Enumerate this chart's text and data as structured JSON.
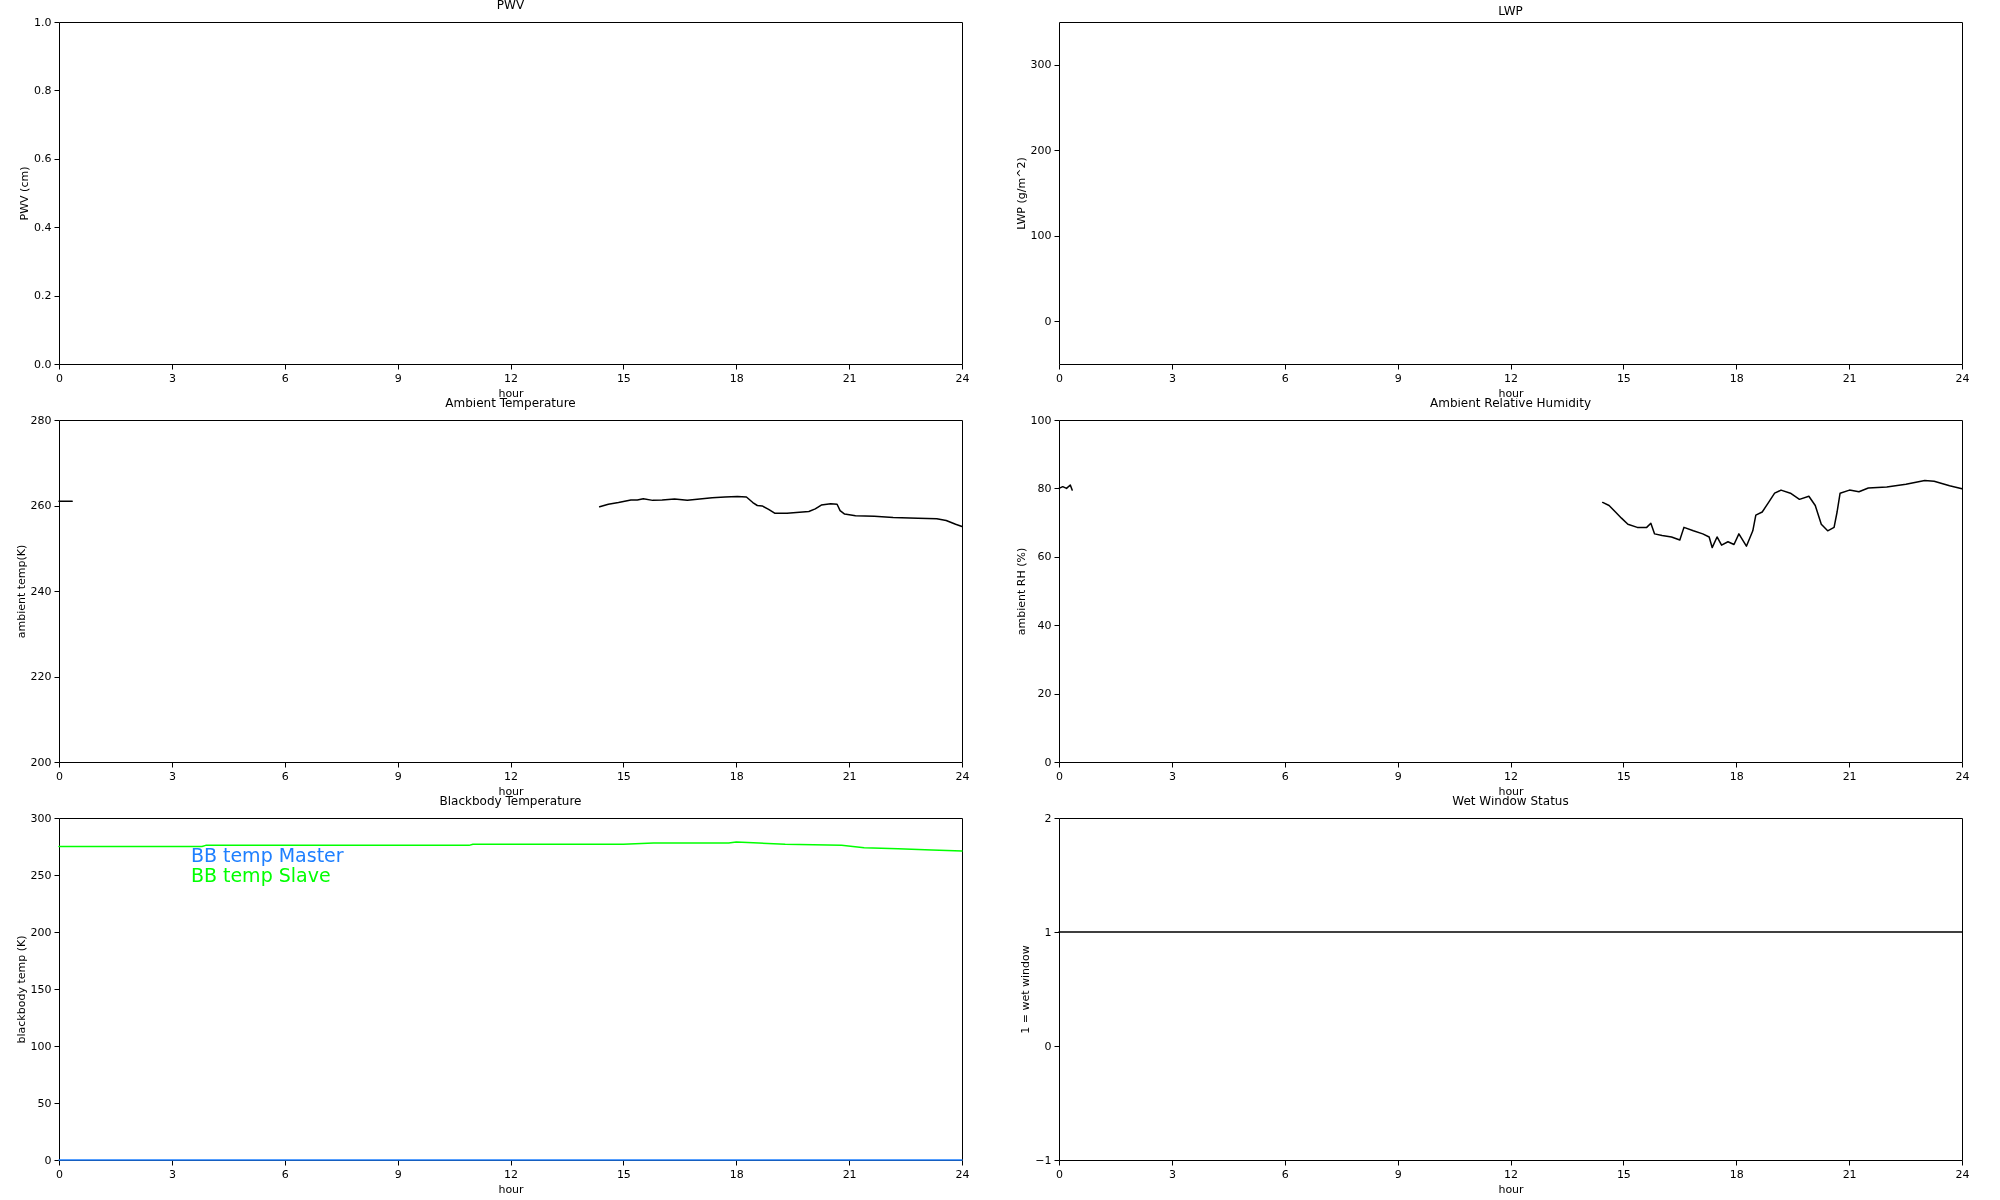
{
  "chart_data": [
    {
      "type": "line",
      "title": "PWV",
      "xlabel": "hour",
      "ylabel": "PWV (cm)",
      "xlim": [
        0,
        24
      ],
      "xticks": [
        0,
        3,
        6,
        9,
        12,
        15,
        18,
        21,
        24
      ],
      "ylim": [
        0,
        1
      ],
      "yticks": [
        {
          "value": 0,
          "label": "0.0"
        },
        0.2,
        0.4,
        0.6,
        0.8,
        {
          "value": 1,
          "label": "1.0"
        }
      ]
    },
    {
      "type": "line",
      "title": "LWP",
      "xlabel": "hour",
      "ylabel": "LWP (g/m^2)",
      "xlim": [
        0,
        24
      ],
      "xticks": [
        0,
        3,
        6,
        9,
        12,
        15,
        18,
        21,
        24
      ],
      "ylim": [
        -50,
        350
      ],
      "yticks": [
        0,
        100,
        200,
        300
      ]
    },
    {
      "type": "line",
      "title": "Ambient Temperature",
      "xlabel": "hour",
      "ylabel": "ambient temp(K)",
      "xlim": [
        0,
        24
      ],
      "xticks": [
        0,
        3,
        6,
        9,
        12,
        15,
        18,
        21,
        24
      ],
      "ylim": [
        200,
        280
      ],
      "yticks": [
        200,
        220,
        240,
        260,
        280
      ],
      "series": [
        {
          "color": "#000000",
          "x": [
            0,
            0.35
          ],
          "values": [
            261,
            261
          ]
        },
        {
          "color": "#000000",
          "x": [
            14.37,
            14.6,
            14.87,
            15.2,
            15.37,
            15.53,
            15.78,
            16.03,
            16.36,
            16.7,
            17.03,
            17.36,
            17.7,
            18.03,
            18.27,
            18.44,
            18.56,
            18.69,
            18.86,
            19.02,
            19.35,
            19.68,
            19.93,
            20.1,
            20.26,
            20.51,
            20.68,
            20.76,
            20.88,
            21.17,
            21.67,
            22.17,
            22.83,
            23.33,
            23.58,
            23.83,
            24
          ],
          "values": [
            259.7,
            260.3,
            260.7,
            261.3,
            261.3,
            261.6,
            261.2,
            261.3,
            261.5,
            261.2,
            261.5,
            261.8,
            262.0,
            262.1,
            262.0,
            260.7,
            260.0,
            259.9,
            259.1,
            258.2,
            258.2,
            258.4,
            258.6,
            259.2,
            260.1,
            260.4,
            260.3,
            258.8,
            258.0,
            257.6,
            257.5,
            257.2,
            257.0,
            256.9,
            256.5,
            255.6,
            255.1
          ]
        }
      ]
    },
    {
      "type": "line",
      "title": "Ambient Relative Humidity",
      "xlabel": "hour",
      "ylabel": "ambient RH (%)",
      "xlim": [
        0,
        24
      ],
      "xticks": [
        0,
        3,
        6,
        9,
        12,
        15,
        18,
        21,
        24
      ],
      "ylim": [
        0,
        100
      ],
      "yticks": [
        0,
        20,
        40,
        60,
        80,
        100
      ],
      "series": [
        {
          "color": "#000000",
          "x": [
            14.45,
            14.62,
            14.79,
            14.95,
            15.12,
            15.37,
            15.62,
            15.73,
            15.83,
            16.03,
            16.28,
            16.5,
            16.61,
            16.86,
            17.11,
            17.28,
            17.36,
            17.49,
            17.61,
            17.78,
            17.94,
            18.07,
            18.27,
            18.44,
            18.52,
            18.69,
            18.86,
            19.02,
            19.19,
            19.44,
            19.68,
            19.93,
            20.1,
            20.26,
            20.43,
            20.6,
            20.68,
            20.76,
            21.01,
            21.26,
            21.51,
            22.0,
            22.51,
            23.01,
            23.26,
            23.67,
            24
          ],
          "values": [
            75.9,
            75.0,
            73.1,
            71.3,
            69.5,
            68.6,
            68.6,
            69.8,
            66.7,
            66.2,
            65.8,
            64.9,
            68.6,
            67.6,
            66.7,
            65.8,
            62.7,
            65.8,
            63.4,
            64.4,
            63.6,
            66.7,
            63.1,
            67.6,
            72.2,
            73.1,
            75.9,
            78.6,
            79.5,
            78.6,
            76.8,
            77.7,
            75.0,
            69.5,
            67.6,
            68.6,
            73.1,
            78.6,
            79.5,
            79.0,
            80.1,
            80.4,
            81.2,
            82.3,
            82.1,
            80.8,
            79.9
          ]
        },
        {
          "color": "#000000",
          "x": [
            0,
            0.1,
            0.2,
            0.3,
            0.35
          ],
          "values": [
            80,
            80.5,
            80,
            81,
            79.5
          ]
        }
      ]
    },
    {
      "type": "line",
      "title": "Blackbody Temperature",
      "xlabel": "hour",
      "ylabel": "blackbody temp (K)",
      "xlim": [
        0,
        24
      ],
      "xticks": [
        0,
        3,
        6,
        9,
        12,
        15,
        18,
        21,
        24
      ],
      "ylim": [
        0,
        300
      ],
      "yticks": [
        0,
        50,
        100,
        150,
        200,
        250,
        300
      ],
      "legend": "top left",
      "series": [
        {
          "name": "BB temp Master",
          "color": "#1e7fff",
          "x": [
            0,
            24
          ],
          "values": [
            0,
            0
          ]
        },
        {
          "name": "BB temp Slave",
          "color": "#00ff00",
          "x": [
            0,
            3.8,
            3.9,
            10.9,
            11.0,
            15.0,
            15.8,
            17.8,
            18.0,
            18.6,
            19.3,
            20.8,
            21.4,
            22.3,
            23.2,
            24
          ],
          "values": [
            275,
            275,
            276,
            276,
            277,
            277,
            278,
            278,
            279,
            278,
            277,
            276,
            274,
            273,
            272,
            271
          ]
        }
      ]
    },
    {
      "type": "line",
      "title": "Wet Window Status",
      "xlabel": "hour",
      "ylabel": "1 = wet window",
      "xlim": [
        0,
        24
      ],
      "xticks": [
        0,
        3,
        6,
        9,
        12,
        15,
        18,
        21,
        24
      ],
      "ylim": [
        -1,
        2
      ],
      "yticks": [
        -1,
        0,
        1,
        2
      ],
      "series": [
        {
          "color": "#000000",
          "x": [
            0,
            24
          ],
          "values": [
            1,
            1
          ]
        }
      ]
    }
  ]
}
